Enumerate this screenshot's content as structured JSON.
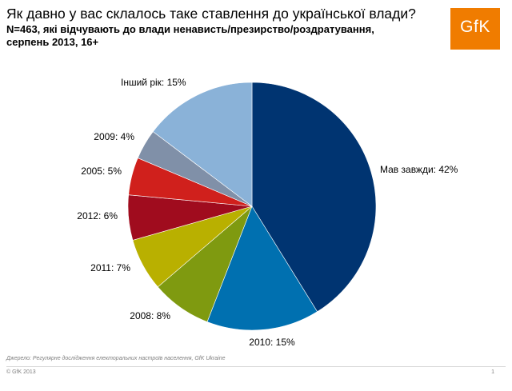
{
  "header": {
    "title": "Як давно у вас склалось таке ставлення до української влади?",
    "subtitle_line1": "N=463, які відчувають до влади ненависть/презирство/роздратування,",
    "subtitle_line2": "серпень 2013, 16+",
    "logo_text": "GfK"
  },
  "chart_data": {
    "type": "pie",
    "start_angle_deg": 0,
    "direction": "clockwise",
    "slices": [
      {
        "label": "Мав завжди: 42%",
        "value": 42,
        "color": "#003471"
      },
      {
        "label": "2010: 15%",
        "value": 15,
        "color": "#0070b0"
      },
      {
        "label": "2008: 8%",
        "value": 8,
        "color": "#7f9a10"
      },
      {
        "label": "2011: 7%",
        "value": 7,
        "color": "#b9b000"
      },
      {
        "label": "2012: 6%",
        "value": 6,
        "color": "#a00c1e"
      },
      {
        "label": "2005: 5%",
        "value": 5,
        "color": "#d0201c"
      },
      {
        "label": "2009: 4%",
        "value": 4,
        "color": "#8090a8"
      },
      {
        "label": "Інший рік: 15%",
        "value": 15,
        "color": "#8ab2d8"
      }
    ]
  },
  "footer": {
    "source": "Джерело: Регулярне дослідження електоральних настроїв населення, GfK Ukraine",
    "copyright": "© GfK 2013",
    "page": "1"
  }
}
